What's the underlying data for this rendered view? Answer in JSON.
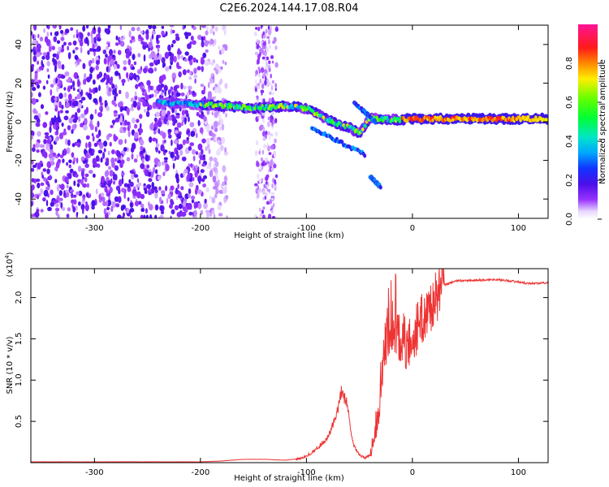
{
  "title": "C2E6.2024.144.17.08.R04",
  "chart_data": [
    {
      "type": "heatmap",
      "xlabel": "Height of straight line (km)",
      "ylabel": "Frequency (Hz)",
      "xlim": [
        -360,
        128
      ],
      "ylim": [
        -50,
        50
      ],
      "xticks": [
        -300,
        -200,
        -100,
        0,
        100
      ],
      "xtick_labels": [
        "-300",
        "-200",
        "-100",
        "0",
        "100"
      ],
      "yticks": [
        -40,
        -20,
        0,
        20,
        40
      ],
      "ytick_labels": [
        "-40",
        "-20",
        "0",
        "20",
        "40"
      ],
      "colorbar": {
        "label": "Normalized spectral amplitude",
        "range": [
          0,
          1
        ],
        "ticks": [
          0.0,
          0.2,
          0.4,
          0.6,
          0.8
        ],
        "tick_labels": [
          "0.0",
          "0.2",
          "0.4",
          "0.6",
          "0.8"
        ],
        "colormap": "rainbow (white-purple-blue-cyan-green-yellow-red-magenta)"
      },
      "features": {
        "noise_band_x": [
          -360,
          -195
        ],
        "noise_stripe_x": [
          -148,
          -128
        ],
        "tone_x": [
          -240,
          128
        ],
        "tone_frequency_hz": [
          [
            -240,
            10
          ],
          [
            -200,
            9
          ],
          [
            -170,
            8
          ],
          [
            -150,
            7
          ],
          [
            -120,
            8
          ],
          [
            -100,
            7
          ],
          [
            -80,
            1
          ],
          [
            -60,
            -3
          ],
          [
            -50,
            -6
          ],
          [
            -40,
            2
          ],
          [
            -20,
            1
          ],
          [
            0,
            1.5
          ],
          [
            20,
            1.5
          ],
          [
            128,
            1.5
          ]
        ],
        "strong_amplitude_x": [
          -10,
          100
        ],
        "split_branches": [
          {
            "x": [
              -95,
              -45
            ],
            "frequency_hz": [
              -3,
              -17
            ]
          },
          {
            "x": [
              -55,
              -35
            ],
            "frequency_hz": [
              10,
              0
            ]
          },
          {
            "x": [
              -40,
              -30
            ],
            "frequency_hz": [
              -28,
              -34
            ]
          }
        ]
      }
    },
    {
      "type": "line",
      "xlabel": "Height of straight line (km)",
      "ylabel": "SNR (10 * v/v)",
      "y_multiplier_label": "(x10^4)",
      "xlim": [
        -360,
        128
      ],
      "ylim": [
        0,
        2.35
      ],
      "xticks": [
        -300,
        -200,
        -100,
        0,
        100
      ],
      "xtick_labels": [
        "-300",
        "-200",
        "-100",
        "0",
        "100"
      ],
      "yticks": [
        0.5,
        1.0,
        1.5,
        2.0
      ],
      "ytick_labels": [
        "0.5",
        "1.0",
        "1.5",
        "2.0"
      ],
      "line_color": "#ee3333",
      "series": [
        {
          "x": [
            -360,
            -300,
            -250,
            -200,
            -180,
            -160,
            -140,
            -120,
            -105,
            -95,
            -88,
            -80,
            -72,
            -67,
            -62,
            -58,
            -55,
            -50,
            -45,
            -40,
            -35,
            -30,
            -27,
            -24,
            -21,
            -18,
            -15,
            -12,
            -9,
            -6,
            -3,
            0,
            5,
            10,
            15,
            20,
            25,
            30,
            40,
            60,
            80,
            100,
            110,
            128
          ],
          "y": [
            0.01,
            0.01,
            0.01,
            0.01,
            0.02,
            0.04,
            0.04,
            0.03,
            0.05,
            0.12,
            0.2,
            0.3,
            0.55,
            0.85,
            0.75,
            0.35,
            0.2,
            0.1,
            0.05,
            0.1,
            0.4,
            0.9,
            1.3,
            1.55,
            1.65,
            1.7,
            1.6,
            1.5,
            1.55,
            1.4,
            1.45,
            1.5,
            1.65,
            1.75,
            1.85,
            1.95,
            2.05,
            2.15,
            2.2,
            2.21,
            2.22,
            2.19,
            2.17,
            2.18
          ]
        }
      ]
    }
  ]
}
